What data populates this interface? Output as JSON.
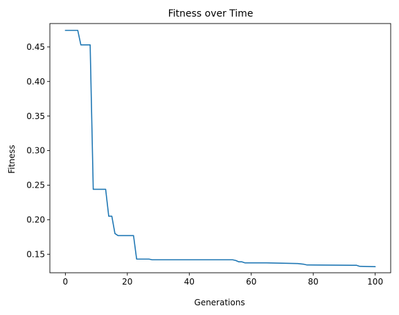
{
  "chart_data": {
    "type": "line",
    "title": "Fitness over Time",
    "xlabel": "Generations",
    "ylabel": "Fitness",
    "xlim": [
      -5,
      105
    ],
    "ylim": [
      0.1232,
      0.4839
    ],
    "xticks": [
      0,
      20,
      40,
      60,
      80,
      100
    ],
    "yticks": [
      0.15,
      0.2,
      0.25,
      0.3,
      0.35,
      0.4,
      0.45
    ],
    "ytick_labels": [
      "0.15",
      "0.20",
      "0.25",
      "0.30",
      "0.35",
      "0.40",
      "0.45"
    ],
    "grid": false,
    "series": [
      {
        "color": "#1f77b4",
        "x": [
          0,
          4,
          5,
          8,
          9,
          13,
          14,
          15,
          16,
          17,
          22,
          23,
          26,
          27,
          28,
          54,
          55,
          56,
          57,
          58,
          65,
          75,
          77,
          78,
          94,
          95,
          100
        ],
        "y": [
          0.474,
          0.474,
          0.453,
          0.453,
          0.244,
          0.244,
          0.205,
          0.205,
          0.18,
          0.177,
          0.177,
          0.143,
          0.143,
          0.143,
          0.142,
          0.142,
          0.141,
          0.139,
          0.139,
          0.1375,
          0.1375,
          0.1365,
          0.1355,
          0.1345,
          0.134,
          0.1325,
          0.132
        ]
      }
    ]
  }
}
